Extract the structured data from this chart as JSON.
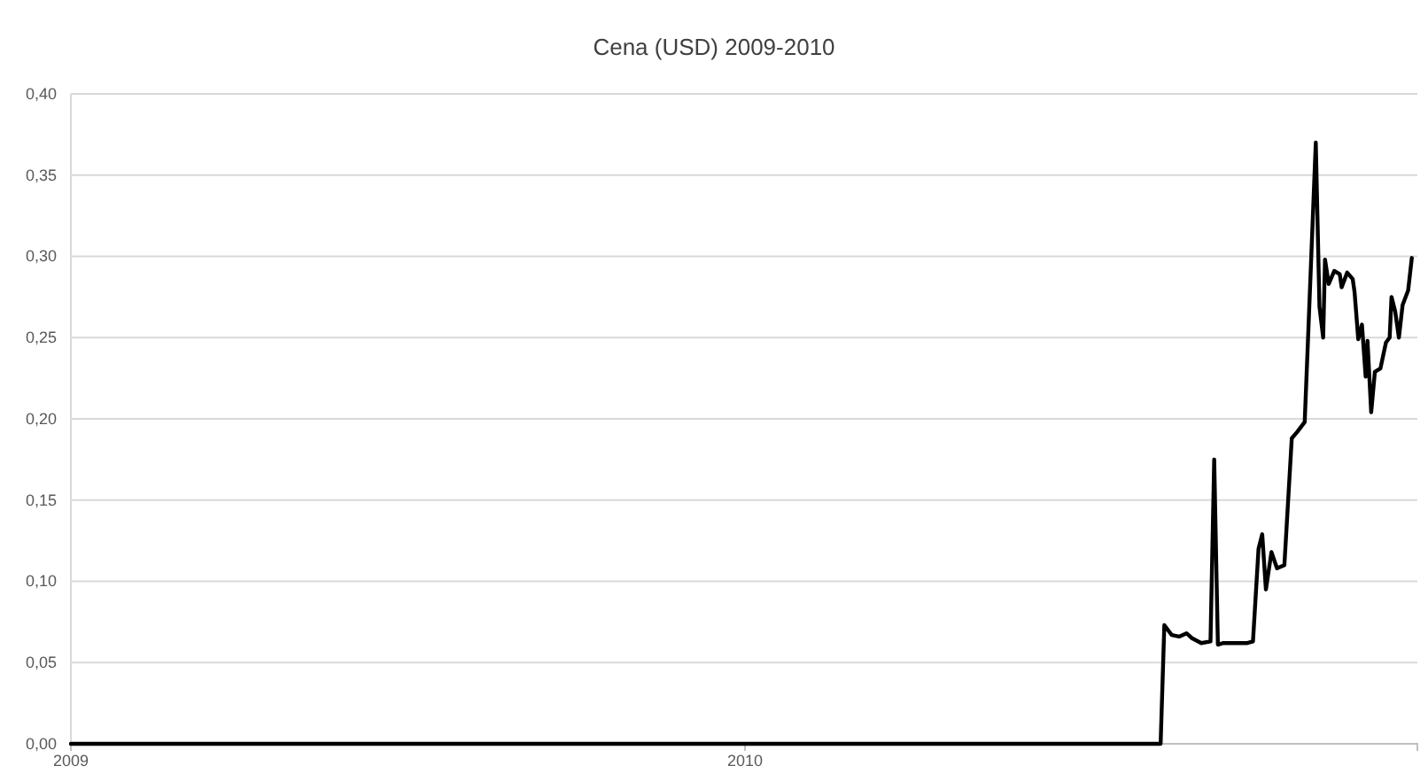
{
  "chart_data": {
    "type": "line",
    "title": "Cena (USD) 2009-2010",
    "x": [
      "2009-01-01",
      "2010-08-14",
      "2010-08-16",
      "2010-08-20",
      "2010-08-24",
      "2010-08-28",
      "2010-08-31",
      "2010-09-05",
      "2010-09-10",
      "2010-09-12",
      "2010-09-14",
      "2010-09-17",
      "2010-09-30",
      "2010-10-03",
      "2010-10-06",
      "2010-10-08",
      "2010-10-10",
      "2010-10-13",
      "2010-10-16",
      "2010-10-18",
      "2010-10-20",
      "2010-10-24",
      "2010-10-27",
      "2010-10-31",
      "2010-11-02",
      "2010-11-06",
      "2010-11-08",
      "2010-11-10",
      "2010-11-11",
      "2010-11-13",
      "2010-11-16",
      "2010-11-19",
      "2010-11-20",
      "2010-11-23",
      "2010-11-26",
      "2010-11-27",
      "2010-11-29",
      "2010-12-01",
      "2010-12-03",
      "2010-12-04",
      "2010-12-06",
      "2010-12-08",
      "2010-12-11",
      "2010-12-14",
      "2010-12-16",
      "2010-12-17",
      "2010-12-19",
      "2010-12-21",
      "2010-12-23",
      "2010-12-26",
      "2010-12-28"
    ],
    "series": [
      {
        "color": "#000000",
        "values": [
          0,
          0,
          0.073,
          0.067,
          0.066,
          0.068,
          0.065,
          0.062,
          0.063,
          0.175,
          0.061,
          0.062,
          0.062,
          0.063,
          0.12,
          0.129,
          0.095,
          0.118,
          0.108,
          0.109,
          0.11,
          0.188,
          0.192,
          0.198,
          0.255,
          0.37,
          0.269,
          0.25,
          0.298,
          0.283,
          0.291,
          0.289,
          0.281,
          0.29,
          0.286,
          0.278,
          0.249,
          0.258,
          0.226,
          0.248,
          0.204,
          0.229,
          0.231,
          0.247,
          0.25,
          0.275,
          0.266,
          0.25,
          0.27,
          0.279,
          0.299
        ]
      }
    ],
    "xlim": [
      "2009-01-01",
      "2010-12-31"
    ],
    "xticks": [
      {
        "value": "2009-01-01",
        "label": "2009"
      },
      {
        "value": "2010-01-01",
        "label": "2010"
      }
    ],
    "ylim": [
      0,
      0.4
    ],
    "yticks": [
      {
        "value": 0,
        "label": "0,00"
      },
      {
        "value": 0.05,
        "label": "0,05"
      },
      {
        "value": 0.1,
        "label": "0,10"
      },
      {
        "value": 0.15,
        "label": "0,15"
      },
      {
        "value": 0.2,
        "label": "0,20"
      },
      {
        "value": 0.25,
        "label": "0,25"
      },
      {
        "value": 0.3,
        "label": "0,30"
      },
      {
        "value": 0.35,
        "label": "0,35"
      },
      {
        "value": 0.4,
        "label": "0,40"
      }
    ],
    "grid": "y"
  }
}
